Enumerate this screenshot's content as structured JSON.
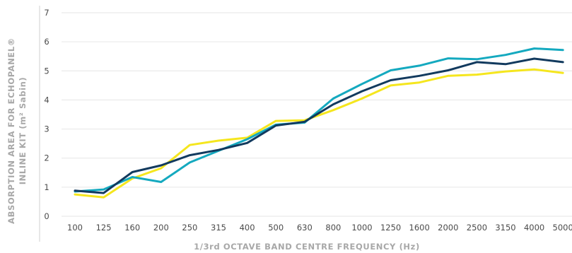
{
  "chart_data": {
    "type": "line",
    "title": "",
    "ylabel_line1": "ABSORPTION AREA FOR ECHOPANEL®",
    "ylabel_line2": "INLINE KIT (m² Sabin)",
    "xlabel": "1/3rd OCTAVE BAND CENTRE FREQUENCY (Hz)",
    "ylim": [
      0,
      7
    ],
    "yticks": [
      "0",
      "1",
      "2",
      "3",
      "4",
      "5",
      "6",
      "7"
    ],
    "grid": true,
    "categories": [
      "100",
      "125",
      "160",
      "200",
      "250",
      "315",
      "400",
      "500",
      "630",
      "800",
      "1000",
      "1250",
      "1600",
      "2000",
      "2500",
      "3150",
      "4000",
      "5000"
    ],
    "series": [
      {
        "color": "#f5e61e",
        "values": [
          0.75,
          0.65,
          1.3,
          1.65,
          2.45,
          2.6,
          2.7,
          3.28,
          3.3,
          3.65,
          4.05,
          4.5,
          4.6,
          4.83,
          4.87,
          4.98,
          5.05,
          4.93
        ]
      },
      {
        "color": "#14a9bf",
        "values": [
          0.85,
          0.92,
          1.35,
          1.18,
          1.85,
          2.25,
          2.65,
          3.15,
          3.22,
          4.05,
          4.55,
          5.02,
          5.18,
          5.43,
          5.4,
          5.55,
          5.77,
          5.72
        ]
      },
      {
        "color": "#123a5e",
        "values": [
          0.88,
          0.8,
          1.52,
          1.75,
          2.1,
          2.28,
          2.52,
          3.12,
          3.25,
          3.85,
          4.3,
          4.68,
          4.83,
          5.02,
          5.3,
          5.23,
          5.42,
          5.3
        ]
      }
    ]
  }
}
